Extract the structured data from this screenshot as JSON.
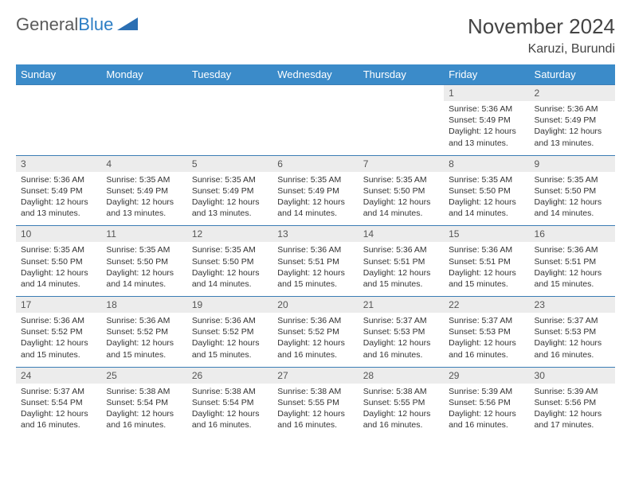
{
  "logo": {
    "word1": "General",
    "word2": "Blue"
  },
  "title": "November 2024",
  "location": "Karuzi, Burundi",
  "colors": {
    "header_bg": "#3b8bc9",
    "header_text": "#ffffff",
    "row_border": "#3b7db5",
    "daynum_bg": "#ececec",
    "logo_gray": "#5a5a5a",
    "logo_blue": "#2b7dc4",
    "logo_shape": "#2b6fb3"
  },
  "day_labels": [
    "Sunday",
    "Monday",
    "Tuesday",
    "Wednesday",
    "Thursday",
    "Friday",
    "Saturday"
  ],
  "weeks": [
    [
      {
        "n": "",
        "sr": "",
        "ss": "",
        "dl": ""
      },
      {
        "n": "",
        "sr": "",
        "ss": "",
        "dl": ""
      },
      {
        "n": "",
        "sr": "",
        "ss": "",
        "dl": ""
      },
      {
        "n": "",
        "sr": "",
        "ss": "",
        "dl": ""
      },
      {
        "n": "",
        "sr": "",
        "ss": "",
        "dl": ""
      },
      {
        "n": "1",
        "sr": "Sunrise: 5:36 AM",
        "ss": "Sunset: 5:49 PM",
        "dl": "Daylight: 12 hours and 13 minutes."
      },
      {
        "n": "2",
        "sr": "Sunrise: 5:36 AM",
        "ss": "Sunset: 5:49 PM",
        "dl": "Daylight: 12 hours and 13 minutes."
      }
    ],
    [
      {
        "n": "3",
        "sr": "Sunrise: 5:36 AM",
        "ss": "Sunset: 5:49 PM",
        "dl": "Daylight: 12 hours and 13 minutes."
      },
      {
        "n": "4",
        "sr": "Sunrise: 5:35 AM",
        "ss": "Sunset: 5:49 PM",
        "dl": "Daylight: 12 hours and 13 minutes."
      },
      {
        "n": "5",
        "sr": "Sunrise: 5:35 AM",
        "ss": "Sunset: 5:49 PM",
        "dl": "Daylight: 12 hours and 13 minutes."
      },
      {
        "n": "6",
        "sr": "Sunrise: 5:35 AM",
        "ss": "Sunset: 5:49 PM",
        "dl": "Daylight: 12 hours and 14 minutes."
      },
      {
        "n": "7",
        "sr": "Sunrise: 5:35 AM",
        "ss": "Sunset: 5:50 PM",
        "dl": "Daylight: 12 hours and 14 minutes."
      },
      {
        "n": "8",
        "sr": "Sunrise: 5:35 AM",
        "ss": "Sunset: 5:50 PM",
        "dl": "Daylight: 12 hours and 14 minutes."
      },
      {
        "n": "9",
        "sr": "Sunrise: 5:35 AM",
        "ss": "Sunset: 5:50 PM",
        "dl": "Daylight: 12 hours and 14 minutes."
      }
    ],
    [
      {
        "n": "10",
        "sr": "Sunrise: 5:35 AM",
        "ss": "Sunset: 5:50 PM",
        "dl": "Daylight: 12 hours and 14 minutes."
      },
      {
        "n": "11",
        "sr": "Sunrise: 5:35 AM",
        "ss": "Sunset: 5:50 PM",
        "dl": "Daylight: 12 hours and 14 minutes."
      },
      {
        "n": "12",
        "sr": "Sunrise: 5:35 AM",
        "ss": "Sunset: 5:50 PM",
        "dl": "Daylight: 12 hours and 14 minutes."
      },
      {
        "n": "13",
        "sr": "Sunrise: 5:36 AM",
        "ss": "Sunset: 5:51 PM",
        "dl": "Daylight: 12 hours and 15 minutes."
      },
      {
        "n": "14",
        "sr": "Sunrise: 5:36 AM",
        "ss": "Sunset: 5:51 PM",
        "dl": "Daylight: 12 hours and 15 minutes."
      },
      {
        "n": "15",
        "sr": "Sunrise: 5:36 AM",
        "ss": "Sunset: 5:51 PM",
        "dl": "Daylight: 12 hours and 15 minutes."
      },
      {
        "n": "16",
        "sr": "Sunrise: 5:36 AM",
        "ss": "Sunset: 5:51 PM",
        "dl": "Daylight: 12 hours and 15 minutes."
      }
    ],
    [
      {
        "n": "17",
        "sr": "Sunrise: 5:36 AM",
        "ss": "Sunset: 5:52 PM",
        "dl": "Daylight: 12 hours and 15 minutes."
      },
      {
        "n": "18",
        "sr": "Sunrise: 5:36 AM",
        "ss": "Sunset: 5:52 PM",
        "dl": "Daylight: 12 hours and 15 minutes."
      },
      {
        "n": "19",
        "sr": "Sunrise: 5:36 AM",
        "ss": "Sunset: 5:52 PM",
        "dl": "Daylight: 12 hours and 15 minutes."
      },
      {
        "n": "20",
        "sr": "Sunrise: 5:36 AM",
        "ss": "Sunset: 5:52 PM",
        "dl": "Daylight: 12 hours and 16 minutes."
      },
      {
        "n": "21",
        "sr": "Sunrise: 5:37 AM",
        "ss": "Sunset: 5:53 PM",
        "dl": "Daylight: 12 hours and 16 minutes."
      },
      {
        "n": "22",
        "sr": "Sunrise: 5:37 AM",
        "ss": "Sunset: 5:53 PM",
        "dl": "Daylight: 12 hours and 16 minutes."
      },
      {
        "n": "23",
        "sr": "Sunrise: 5:37 AM",
        "ss": "Sunset: 5:53 PM",
        "dl": "Daylight: 12 hours and 16 minutes."
      }
    ],
    [
      {
        "n": "24",
        "sr": "Sunrise: 5:37 AM",
        "ss": "Sunset: 5:54 PM",
        "dl": "Daylight: 12 hours and 16 minutes."
      },
      {
        "n": "25",
        "sr": "Sunrise: 5:38 AM",
        "ss": "Sunset: 5:54 PM",
        "dl": "Daylight: 12 hours and 16 minutes."
      },
      {
        "n": "26",
        "sr": "Sunrise: 5:38 AM",
        "ss": "Sunset: 5:54 PM",
        "dl": "Daylight: 12 hours and 16 minutes."
      },
      {
        "n": "27",
        "sr": "Sunrise: 5:38 AM",
        "ss": "Sunset: 5:55 PM",
        "dl": "Daylight: 12 hours and 16 minutes."
      },
      {
        "n": "28",
        "sr": "Sunrise: 5:38 AM",
        "ss": "Sunset: 5:55 PM",
        "dl": "Daylight: 12 hours and 16 minutes."
      },
      {
        "n": "29",
        "sr": "Sunrise: 5:39 AM",
        "ss": "Sunset: 5:56 PM",
        "dl": "Daylight: 12 hours and 16 minutes."
      },
      {
        "n": "30",
        "sr": "Sunrise: 5:39 AM",
        "ss": "Sunset: 5:56 PM",
        "dl": "Daylight: 12 hours and 17 minutes."
      }
    ]
  ]
}
